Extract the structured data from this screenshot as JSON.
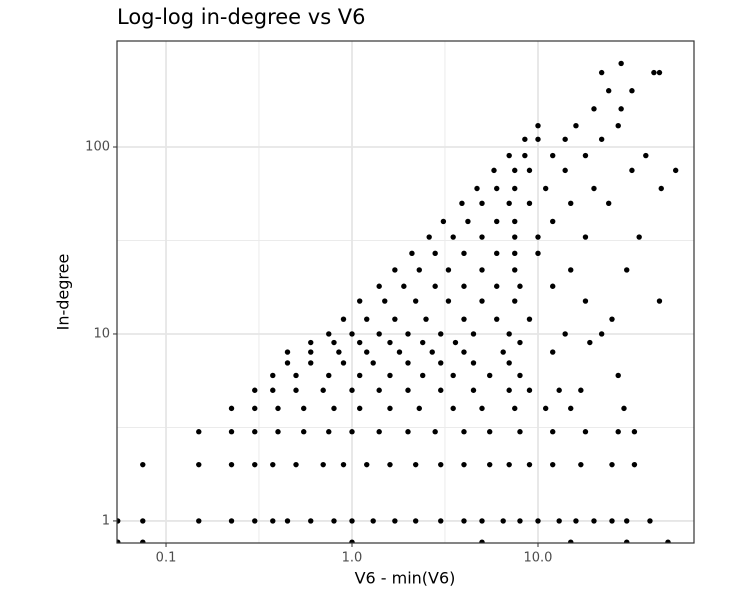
{
  "chart_data": {
    "type": "scatter",
    "title": "Log-log in-degree vs V6",
    "x_label": "V6 - min(V6)",
    "y_label": "In-degree",
    "x_log": true,
    "y_log": true,
    "grid": true,
    "color": "#000000",
    "xlim": [
      0.0545,
      69
    ],
    "ylim": [
      0.762,
      369
    ],
    "xticks": [
      0.1,
      {
        "value": 1,
        "label": "1.0"
      },
      {
        "value": 10,
        "label": "10.0"
      }
    ],
    "yticks": [
      1,
      10,
      100
    ],
    "x_minor_grid": [
      0.316,
      3.16
    ],
    "y_minor_grid": [
      3.16,
      31.6
    ],
    "x": [
      0.055,
      0.075,
      0.15,
      0.225,
      0.3,
      0.375,
      0.45,
      0.6,
      0.8,
      1.0,
      1.3,
      1.7,
      2.2,
      3,
      4,
      5,
      6.5,
      8,
      10,
      13,
      16,
      20,
      25,
      30,
      40,
      0.075,
      0.15,
      0.225,
      0.3,
      0.375,
      0.5,
      0.7,
      0.9,
      1.2,
      1.6,
      2.2,
      3,
      4,
      5.5,
      7,
      9,
      12,
      17,
      25,
      33,
      0.15,
      0.225,
      0.3,
      0.4,
      0.55,
      0.75,
      1.0,
      1.4,
      2,
      2.8,
      4,
      5.5,
      8,
      12,
      18,
      27,
      33,
      0.225,
      0.3,
      0.4,
      0.55,
      0.8,
      1.1,
      1.6,
      2.3,
      3.5,
      5,
      7.5,
      11,
      15,
      29,
      0.3,
      0.375,
      0.5,
      0.7,
      1.0,
      1.4,
      2,
      3,
      4.5,
      7,
      9,
      13,
      17,
      0.375,
      0.5,
      0.75,
      1.1,
      1.6,
      2.4,
      3.5,
      5.5,
      8,
      27,
      0.45,
      0.6,
      0.9,
      1.3,
      2,
      3,
      4.5,
      7,
      0.45,
      0.6,
      0.85,
      1.2,
      1.8,
      2.7,
      4,
      6.5,
      12,
      0.6,
      0.8,
      1.1,
      1.6,
      2.4,
      3.6,
      8,
      19,
      0.75,
      1.0,
      1.4,
      2,
      3,
      4.5,
      7,
      14,
      22,
      0.9,
      1.2,
      1.7,
      2.5,
      4,
      6,
      9,
      25,
      1.1,
      1.5,
      2.2,
      3.3,
      5,
      7.5,
      18,
      45,
      1.4,
      1.9,
      2.8,
      4,
      6,
      8,
      12,
      1.7,
      2.3,
      3.3,
      5,
      7.5,
      15,
      30,
      2.1,
      2.8,
      4,
      6,
      7.5,
      10,
      2.6,
      3.5,
      5,
      7.5,
      10,
      18,
      35,
      3.1,
      4.2,
      6,
      7.5,
      12,
      3.9,
      5,
      7,
      9,
      15,
      24,
      4.7,
      6,
      7.5,
      11,
      20,
      46,
      5.8,
      7.5,
      9,
      14,
      32,
      55,
      7,
      8.5,
      12,
      18,
      38,
      8.5,
      10,
      14,
      22,
      10,
      16,
      27,
      20,
      28,
      24,
      32,
      22,
      42,
      45,
      28,
      0.055,
      0.075,
      1,
      5,
      15,
      30,
      50
    ],
    "values": [
      1,
      1,
      1,
      1,
      1,
      1,
      1,
      1,
      1,
      1,
      1,
      1,
      1,
      1,
      1,
      1,
      1,
      1,
      1,
      1,
      1,
      1,
      1,
      1,
      1,
      2,
      2,
      2,
      2,
      2,
      2,
      2,
      2,
      2,
      2,
      2,
      2,
      2,
      2,
      2,
      2,
      2,
      2,
      2,
      2,
      3,
      3,
      3,
      3,
      3,
      3,
      3,
      3,
      3,
      3,
      3,
      3,
      3,
      3,
      3,
      3,
      3,
      4,
      4,
      4,
      4,
      4,
      4,
      4,
      4,
      4,
      4,
      4,
      4,
      4,
      4,
      5,
      5,
      5,
      5,
      5,
      5,
      5,
      5,
      5,
      5,
      5,
      5,
      5,
      6,
      6,
      6,
      6,
      6,
      6,
      6,
      6,
      6,
      6,
      7,
      7,
      7,
      7,
      7,
      7,
      7,
      7,
      8,
      8,
      8,
      8,
      8,
      8,
      8,
      8,
      8,
      9,
      9,
      9,
      9,
      9,
      9,
      9,
      9,
      10,
      10,
      10,
      10,
      10,
      10,
      10,
      10,
      10,
      12,
      12,
      12,
      12,
      12,
      12,
      12,
      12,
      15,
      15,
      15,
      15,
      15,
      15,
      15,
      15,
      18,
      18,
      18,
      18,
      18,
      18,
      18,
      22,
      22,
      22,
      22,
      22,
      22,
      22,
      27,
      27,
      27,
      27,
      27,
      27,
      33,
      33,
      33,
      33,
      33,
      33,
      33,
      40,
      40,
      40,
      40,
      40,
      50,
      50,
      50,
      50,
      50,
      50,
      60,
      60,
      60,
      60,
      60,
      60,
      75,
      75,
      75,
      75,
      75,
      75,
      90,
      90,
      90,
      90,
      90,
      110,
      110,
      110,
      110,
      130,
      130,
      130,
      160,
      160,
      200,
      200,
      250,
      250,
      250,
      280,
      0.77,
      0.77,
      0.77,
      0.77,
      0.77,
      0.77,
      0.77
    ]
  }
}
